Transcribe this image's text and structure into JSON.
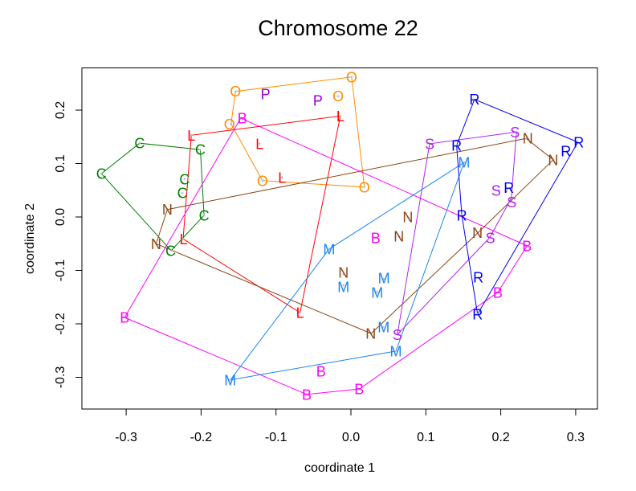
{
  "chart_data": {
    "type": "scatter",
    "title": "Chromosome 22",
    "xlabel": "coordinate 1",
    "ylabel": "coordinate 2",
    "xlim": [
      -0.355,
      0.33
    ],
    "ylim": [
      -0.36,
      0.28
    ],
    "xticks": [
      -0.3,
      -0.2,
      -0.1,
      0.0,
      0.1,
      0.2,
      0.3
    ],
    "yticks": [
      -0.3,
      -0.2,
      -0.1,
      0.0,
      0.1,
      0.2
    ],
    "xtick_labels": [
      "-0.3",
      "-0.2",
      "-0.1",
      "0.0",
      "0.1",
      "0.2",
      "0.3"
    ],
    "ytick_labels": [
      "-0.3",
      "-0.2",
      "-0.1",
      "0.0",
      "0.1",
      "0.2"
    ],
    "grid": false,
    "series": [
      {
        "name": "C",
        "label": "C",
        "color": "#008000",
        "hull": true,
        "points": [
          [
            -0.333,
            0.081
          ],
          [
            -0.282,
            0.138
          ],
          [
            -0.201,
            0.126
          ],
          [
            -0.222,
            0.071
          ],
          [
            -0.225,
            0.045
          ],
          [
            -0.196,
            0.003
          ],
          [
            -0.24,
            -0.063
          ]
        ]
      },
      {
        "name": "O",
        "label": "O",
        "color": "#ff8c00",
        "hull": true,
        "points": [
          [
            -0.154,
            0.235
          ],
          [
            0.001,
            0.262
          ],
          [
            -0.017,
            0.226
          ],
          [
            -0.16,
            0.174
          ],
          [
            -0.118,
            0.068
          ],
          [
            0.018,
            0.056
          ]
        ]
      },
      {
        "name": "P",
        "label": "P",
        "color": "#9400d3",
        "hull": false,
        "points": [
          [
            -0.114,
            0.23
          ],
          [
            -0.044,
            0.218
          ]
        ]
      },
      {
        "name": "L",
        "label": "L",
        "color": "#ff0000",
        "hull": true,
        "points": [
          [
            -0.213,
            0.153
          ],
          [
            -0.014,
            0.189
          ],
          [
            -0.122,
            0.137
          ],
          [
            -0.092,
            0.074
          ],
          [
            -0.224,
            -0.041
          ],
          [
            -0.068,
            -0.179
          ]
        ]
      },
      {
        "name": "N",
        "label": "N",
        "color": "#8b4513",
        "hull": true,
        "points": [
          [
            -0.245,
            0.014
          ],
          [
            -0.26,
            -0.05
          ],
          [
            -0.01,
            -0.107
          ],
          [
            0.076,
            0.0
          ],
          [
            0.064,
            -0.036
          ],
          [
            0.027,
            -0.218
          ],
          [
            0.17,
            -0.029
          ],
          [
            0.234,
            0.147
          ],
          [
            0.27,
            0.107
          ]
        ]
      },
      {
        "name": "B",
        "label": "B",
        "color": "#ff00ff",
        "hull": true,
        "points": [
          [
            -0.147,
            0.185
          ],
          [
            -0.302,
            -0.188
          ],
          [
            -0.059,
            -0.332
          ],
          [
            0.011,
            -0.322
          ],
          [
            -0.04,
            -0.289
          ],
          [
            0.033,
            -0.039
          ],
          [
            0.196,
            -0.141
          ],
          [
            0.235,
            -0.054
          ]
        ]
      },
      {
        "name": "M",
        "label": "M",
        "color": "#1c86ee",
        "hull": true,
        "points": [
          [
            -0.029,
            -0.06
          ],
          [
            -0.01,
            -0.128
          ],
          [
            0.044,
            -0.116
          ],
          [
            0.035,
            -0.14
          ],
          [
            0.043,
            -0.206
          ],
          [
            0.06,
            -0.251
          ],
          [
            -0.161,
            -0.305
          ],
          [
            0.151,
            0.102
          ]
        ]
      },
      {
        "name": "S",
        "label": "S",
        "color": "#b023e8",
        "hull": true,
        "points": [
          [
            0.105,
            0.137
          ],
          [
            0.221,
            0.159
          ],
          [
            0.198,
            0.05
          ],
          [
            0.214,
            0.035
          ],
          [
            0.185,
            -0.039
          ],
          [
            0.062,
            -0.22
          ]
        ]
      },
      {
        "name": "R",
        "label": "R",
        "color": "#0000ee",
        "hull": true,
        "points": [
          [
            0.165,
            0.22
          ],
          [
            0.141,
            0.134
          ],
          [
            0.303,
            0.14
          ],
          [
            0.288,
            0.123
          ],
          [
            0.207,
            0.047
          ],
          [
            0.148,
            0.003
          ],
          [
            0.17,
            -0.113
          ],
          [
            0.169,
            -0.182
          ]
        ]
      }
    ]
  }
}
